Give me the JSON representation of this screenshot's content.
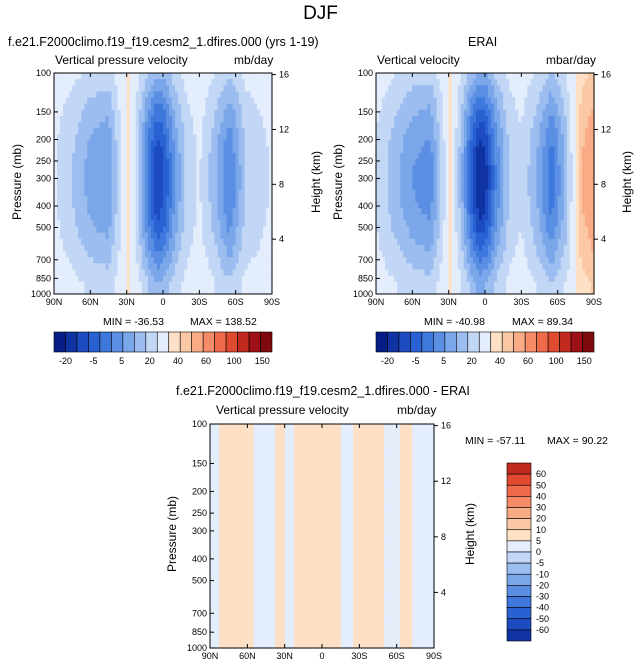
{
  "page": {
    "title": "DJF"
  },
  "colors": {
    "positive_scale": [
      "#fde0c5",
      "#fbc8a6",
      "#f9ab85",
      "#f58c67",
      "#ef6a4b",
      "#e04a31",
      "#c22a1f",
      "#9e1016",
      "#7f0a0d"
    ],
    "negative_scale": [
      "#e3edfb",
      "#c2d6f5",
      "#9cbdef",
      "#7aa6ea",
      "#5b8fe4",
      "#3e78dd",
      "#2a61d2",
      "#1c4cc0",
      "#0f33a2",
      "#061d85"
    ]
  },
  "chart_data": [
    {
      "type": "heatmap",
      "title": "f.e21.F2000climo.f19_f19.cesm2_1.dfires.000 (yrs 1-19)",
      "variable_label": "Vertical pressure velocity",
      "units": "mb/day",
      "ylabel": "Pressure (mb)",
      "y2label": "Height (km)",
      "x_ticks": [
        "90N",
        "60N",
        "30N",
        "0",
        "30S",
        "60S",
        "90S"
      ],
      "y_ticks": [
        "100",
        "150",
        "200",
        "250",
        "300",
        "400",
        "500",
        "700",
        "850",
        "1000"
      ],
      "y2_ticks": [
        "16",
        "12",
        "8",
        "4"
      ],
      "min_label": "MIN = -36.53",
      "max_label": "MAX = 138.52",
      "colorbar_labels": [
        "-20",
        "-5",
        "5",
        "20",
        "40",
        "60",
        "100",
        "150"
      ],
      "profile": [
        {
          "lat": 90,
          "v": -3
        },
        {
          "lat": 75,
          "v": -7
        },
        {
          "lat": 60,
          "v": -12
        },
        {
          "lat": 45,
          "v": -14
        },
        {
          "lat": 35,
          "v": -4
        },
        {
          "lat": 28,
          "v": 2
        },
        {
          "lat": 20,
          "v": -8
        },
        {
          "lat": 12,
          "v": -20
        },
        {
          "lat": 5,
          "v": -28
        },
        {
          "lat": 0,
          "v": -26
        },
        {
          "lat": -10,
          "v": -14
        },
        {
          "lat": -20,
          "v": -6
        },
        {
          "lat": -30,
          "v": -3
        },
        {
          "lat": -42,
          "v": -9
        },
        {
          "lat": -55,
          "v": -18
        },
        {
          "lat": -68,
          "v": -7
        },
        {
          "lat": -80,
          "v": -5
        },
        {
          "lat": -90,
          "v": -3
        }
      ]
    },
    {
      "type": "heatmap",
      "title": "ERAI",
      "variable_label": "Vertical velocity",
      "units": "mbar/day",
      "ylabel": "Pressure (mb)",
      "y2label": "Height (km)",
      "x_ticks": [
        "90N",
        "60N",
        "30N",
        "0",
        "30S",
        "60S",
        "90S"
      ],
      "y_ticks": [
        "100",
        "150",
        "200",
        "250",
        "300",
        "400",
        "500",
        "700",
        "850",
        "1000"
      ],
      "y2_ticks": [
        "16",
        "12",
        "8",
        "4"
      ],
      "min_label": "MIN = -40.98",
      "max_label": "MAX = 89.34",
      "colorbar_labels": [
        "-20",
        "-5",
        "5",
        "20",
        "40",
        "60",
        "100",
        "150"
      ],
      "profile": [
        {
          "lat": 90,
          "v": -4
        },
        {
          "lat": 75,
          "v": -9
        },
        {
          "lat": 60,
          "v": -14
        },
        {
          "lat": 45,
          "v": -16
        },
        {
          "lat": 35,
          "v": -5
        },
        {
          "lat": 28,
          "v": 1
        },
        {
          "lat": 20,
          "v": -9
        },
        {
          "lat": 12,
          "v": -22
        },
        {
          "lat": 5,
          "v": -32
        },
        {
          "lat": 0,
          "v": -30
        },
        {
          "lat": -10,
          "v": -16
        },
        {
          "lat": -20,
          "v": -7
        },
        {
          "lat": -30,
          "v": -4
        },
        {
          "lat": -42,
          "v": -10
        },
        {
          "lat": -55,
          "v": -20
        },
        {
          "lat": -68,
          "v": -8
        },
        {
          "lat": -80,
          "v": 8
        },
        {
          "lat": -90,
          "v": 12
        }
      ]
    },
    {
      "type": "heatmap",
      "title": "f.e21.F2000climo.f19_f19.cesm2_1.dfires.000 - ERAI",
      "variable_label": "Vertical pressure velocity",
      "units": "mb/day",
      "ylabel": "Pressure (mb)",
      "y2label": "Height (km)",
      "x_ticks": [
        "90N",
        "60N",
        "30N",
        "0",
        "30S",
        "60S",
        "90S"
      ],
      "y_ticks": [
        "100",
        "150",
        "200",
        "250",
        "300",
        "400",
        "500",
        "700",
        "850",
        "1000"
      ],
      "y2_ticks": [
        "16",
        "12",
        "8",
        "4"
      ],
      "min_label": "MIN = -57.11",
      "max_label": "MAX =  90.22",
      "colorbar_labels": [
        "60",
        "50",
        "40",
        "30",
        "20",
        "10",
        "5",
        "0",
        "-5",
        "-10",
        "-20",
        "-30",
        "-40",
        "-50",
        "-60"
      ],
      "profile": [
        {
          "lat": 90,
          "v": -2
        },
        {
          "lat": 75,
          "v": 2
        },
        {
          "lat": 60,
          "v": 1
        },
        {
          "lat": 45,
          "v": -2
        },
        {
          "lat": 35,
          "v": 1
        },
        {
          "lat": 25,
          "v": -1
        },
        {
          "lat": 15,
          "v": 2
        },
        {
          "lat": 5,
          "v": 3
        },
        {
          "lat": 0,
          "v": 4
        },
        {
          "lat": -10,
          "v": 2
        },
        {
          "lat": -20,
          "v": -2
        },
        {
          "lat": -30,
          "v": 2
        },
        {
          "lat": -42,
          "v": 3
        },
        {
          "lat": -55,
          "v": -2
        },
        {
          "lat": -68,
          "v": 2
        },
        {
          "lat": -80,
          "v": -3
        },
        {
          "lat": -90,
          "v": -2
        }
      ]
    }
  ]
}
